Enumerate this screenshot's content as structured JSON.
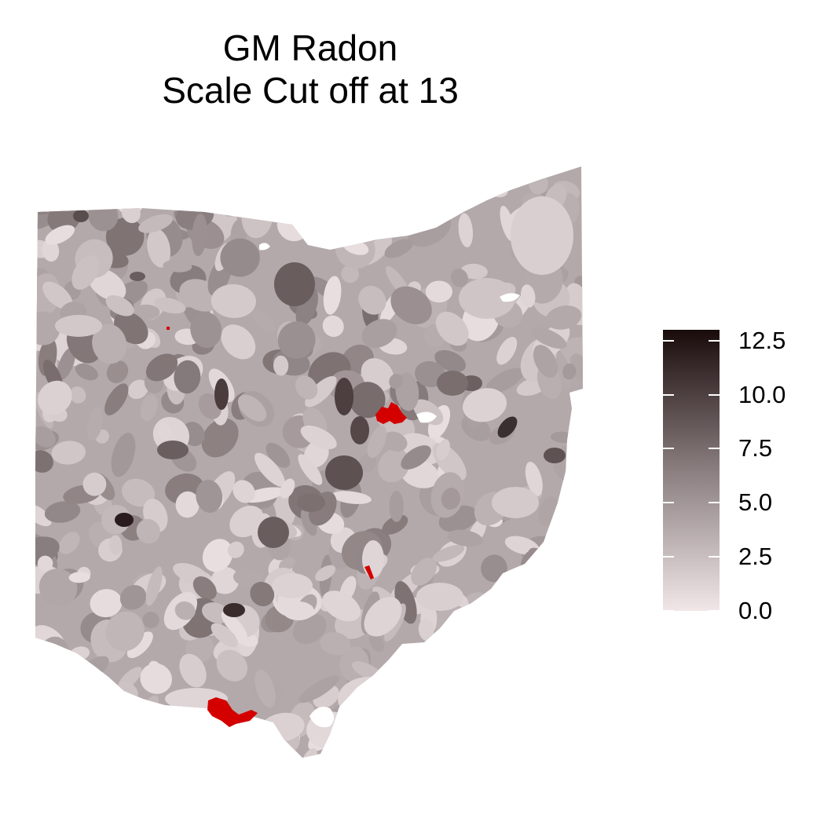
{
  "title": {
    "line1": "GM Radon",
    "line2": "Scale Cut off at 13"
  },
  "legend": {
    "ticks": [
      "12.5",
      "10.0",
      "7.5",
      "5.0",
      "2.5",
      "0.0"
    ],
    "tick_values": [
      12.5,
      10.0,
      7.5,
      5.0,
      2.5,
      0.0
    ],
    "min": 0,
    "max": 13,
    "color_low": "#f1e6e8",
    "color_high": "#1a0b0b"
  },
  "colors": {
    "base_region": "#b3a9aa",
    "over_cutoff": "#d40000",
    "background": "#ffffff"
  },
  "map": {
    "region": "Ohio",
    "variable": "GM Radon",
    "cutoff": 13,
    "over_cutoff_areas": 4
  }
}
